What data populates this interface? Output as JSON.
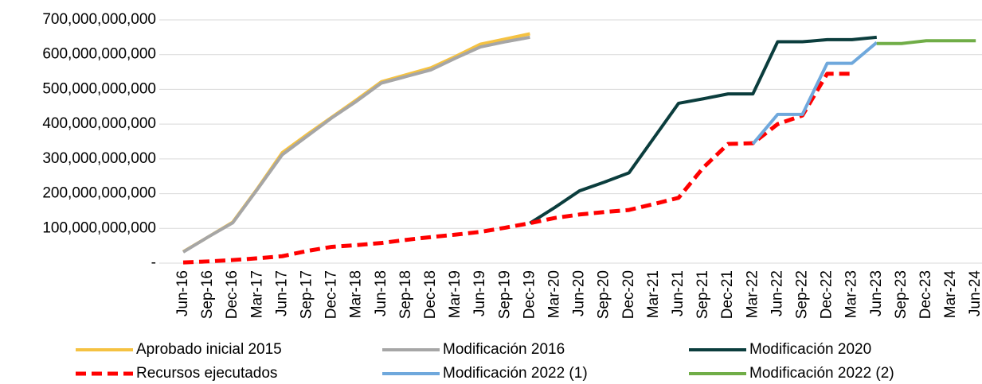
{
  "chart_data": {
    "type": "line",
    "categories": [
      "Jun-16",
      "Sep-16",
      "Dec-16",
      "Mar-17",
      "Jun-17",
      "Sep-17",
      "Dec-17",
      "Mar-18",
      "Jun-18",
      "Sep-18",
      "Dec-18",
      "Mar-19",
      "Jun-19",
      "Sep-19",
      "Dec-19",
      "Mar-20",
      "Jun-20",
      "Sep-20",
      "Dec-20",
      "Mar-21",
      "Jun-21",
      "Sep-21",
      "Dec-21",
      "Mar-22",
      "Jun-22",
      "Sep-22",
      "Dec-22",
      "Mar-23",
      "Jun-23",
      "Sep-23",
      "Dec-23",
      "Mar-24",
      "Jun-24"
    ],
    "series": [
      {
        "name": "Aprobado inicial 2015",
        "color": "#f5c242",
        "values": [
          33000000000,
          75000000000,
          118000000000,
          215000000000,
          318000000000,
          370000000000,
          420000000000,
          470000000000,
          522000000000,
          542000000000,
          562000000000,
          595000000000,
          630000000000,
          645000000000,
          660000000000,
          null,
          null,
          null,
          null,
          null,
          null,
          null,
          null,
          null,
          null,
          null,
          null,
          null,
          null,
          null,
          null,
          null,
          null
        ]
      },
      {
        "name": "Modificación 2016",
        "color": "#a6a6a6",
        "values": [
          32000000000,
          75000000000,
          116000000000,
          213000000000,
          312000000000,
          365000000000,
          418000000000,
          466000000000,
          518000000000,
          537000000000,
          556000000000,
          590000000000,
          622000000000,
          637000000000,
          650000000000,
          null,
          null,
          null,
          null,
          null,
          null,
          null,
          null,
          null,
          null,
          null,
          null,
          null,
          null,
          null,
          null,
          null,
          null
        ]
      },
      {
        "name": "Modificación 2020",
        "color": "#0b3d3d",
        "values": [
          null,
          null,
          null,
          null,
          null,
          null,
          null,
          null,
          null,
          null,
          null,
          null,
          null,
          null,
          115000000000,
          160000000000,
          208000000000,
          233000000000,
          260000000000,
          360000000000,
          460000000000,
          473000000000,
          487000000000,
          487000000000,
          637000000000,
          637000000000,
          643000000000,
          643000000000,
          650000000000,
          null,
          null,
          null,
          null
        ]
      },
      {
        "name": "Recursos ejecutados",
        "color": "#ff0000",
        "dashed": true,
        "values": [
          2000000000,
          5000000000,
          9000000000,
          14000000000,
          20000000000,
          35000000000,
          47000000000,
          52000000000,
          58000000000,
          67000000000,
          75000000000,
          82000000000,
          90000000000,
          102000000000,
          115000000000,
          130000000000,
          140000000000,
          147000000000,
          153000000000,
          170000000000,
          188000000000,
          275000000000,
          343000000000,
          345000000000,
          400000000000,
          425000000000,
          545000000000,
          545000000000,
          null,
          null,
          null,
          null,
          null
        ]
      },
      {
        "name": "Modificación 2022 (1)",
        "color": "#6fa8dc",
        "values": [
          null,
          null,
          null,
          null,
          null,
          null,
          null,
          null,
          null,
          null,
          null,
          null,
          null,
          null,
          null,
          null,
          null,
          null,
          null,
          null,
          null,
          null,
          null,
          343000000000,
          428000000000,
          428000000000,
          575000000000,
          575000000000,
          635000000000,
          null,
          null,
          null,
          null
        ]
      },
      {
        "name": "Modificación 2022 (2)",
        "color": "#70ad47",
        "values": [
          null,
          null,
          null,
          null,
          null,
          null,
          null,
          null,
          null,
          null,
          null,
          null,
          null,
          null,
          null,
          null,
          null,
          null,
          null,
          null,
          null,
          null,
          null,
          null,
          null,
          null,
          null,
          null,
          632000000000,
          632000000000,
          640000000000,
          640000000000,
          640000000000
        ]
      }
    ],
    "ylim": [
      0,
      700000000000
    ],
    "yticks": [
      {
        "value": 0,
        "label": "-"
      },
      {
        "value": 100000000000,
        "label": "100,000,000,000"
      },
      {
        "value": 200000000000,
        "label": "200,000,000,000"
      },
      {
        "value": 300000000000,
        "label": "300,000,000,000"
      },
      {
        "value": 400000000000,
        "label": "400,000,000,000"
      },
      {
        "value": 500000000000,
        "label": "500,000,000,000"
      },
      {
        "value": 600000000000,
        "label": "600,000,000,000"
      },
      {
        "value": 700000000000,
        "label": "700,000,000,000"
      }
    ],
    "grid": true,
    "legend": "bottom"
  }
}
